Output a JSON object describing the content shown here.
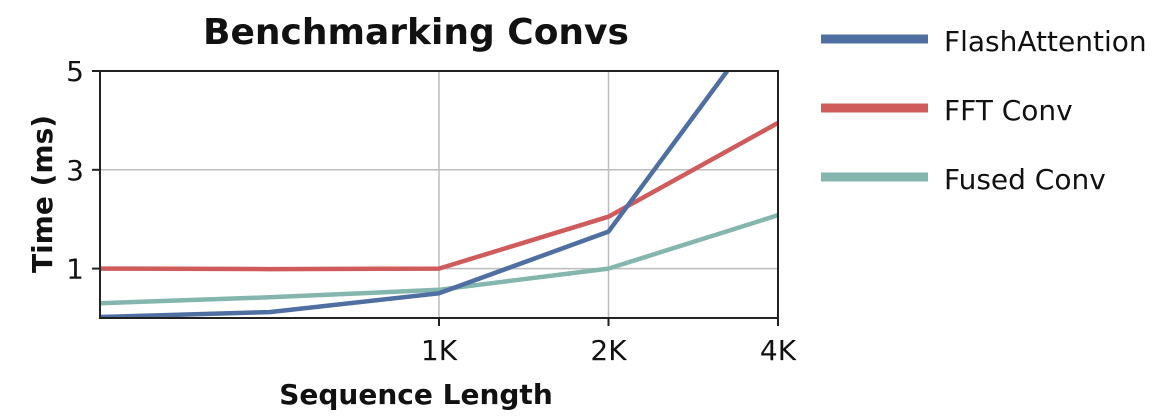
{
  "chart_data": {
    "type": "line",
    "title": "Benchmarking Convs",
    "xlabel": "Sequence Length",
    "ylabel": "Time (ms)",
    "xlim": [
      256,
      4096
    ],
    "ylim": [
      0,
      5
    ],
    "x_ticks": [
      {
        "value": 1024,
        "label": "1K"
      },
      {
        "value": 2048,
        "label": "2K"
      },
      {
        "value": 4096,
        "label": "4K"
      }
    ],
    "y_ticks": [
      {
        "value": 1,
        "label": "1"
      },
      {
        "value": 3,
        "label": "3"
      },
      {
        "value": 5,
        "label": "5"
      }
    ],
    "grid": true,
    "legend_position": "right",
    "series": [
      {
        "name": "FlashAttention",
        "color": "#4f6fa3",
        "points": [
          [
            256,
            0.02
          ],
          [
            512,
            0.12
          ],
          [
            1024,
            0.5
          ],
          [
            2048,
            1.75
          ],
          [
            3328,
            5.0
          ]
        ]
      },
      {
        "name": "FFT Conv",
        "color": "#d05b5b",
        "points": [
          [
            256,
            1.0
          ],
          [
            512,
            0.99
          ],
          [
            1024,
            1.0
          ],
          [
            2048,
            2.05
          ],
          [
            4096,
            3.95
          ]
        ]
      },
      {
        "name": "Fused Conv",
        "color": "#84b6ae",
        "points": [
          [
            256,
            0.3
          ],
          [
            512,
            0.42
          ],
          [
            1024,
            0.57
          ],
          [
            2048,
            1.0
          ],
          [
            4096,
            2.08
          ]
        ]
      }
    ]
  }
}
